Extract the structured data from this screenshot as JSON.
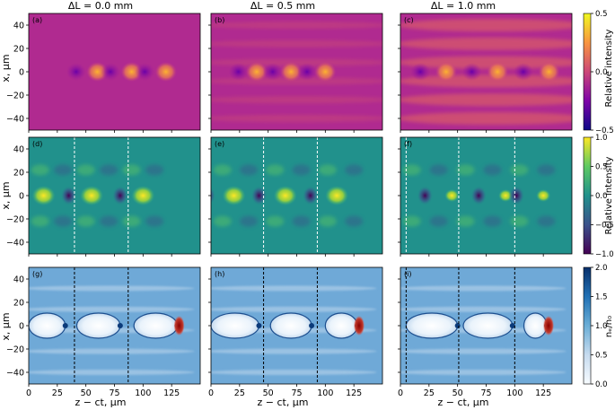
{
  "chart_data": {
    "type": "heatmap",
    "layout": {
      "rows": 3,
      "columns": 3
    },
    "column_titles": [
      "ΔL = 0.0 mm",
      "ΔL = 0.5 mm",
      "ΔL = 1.0 mm"
    ],
    "xlabel": "z − ct, μm",
    "ylabel": "x, μm",
    "xlim": [
      0,
      150
    ],
    "ylim": [
      -50,
      50
    ],
    "x_ticks": [
      "0",
      "25",
      "50",
      "75",
      "100",
      "125"
    ],
    "y_ticks": [
      "40",
      "20",
      "0",
      "−20",
      "−40"
    ],
    "colorbars": [
      {
        "row": 0,
        "label": "Relative intensity",
        "range": [
          -0.5,
          0.5
        ],
        "ticks": [
          "−0.5",
          "0.0",
          "0.5"
        ],
        "colormap": "plasma"
      },
      {
        "row": 1,
        "label": "Relative intensity",
        "range": [
          -1.0,
          1.0
        ],
        "ticks": [
          "−1.0",
          "−0.5",
          "0.0",
          "0.5",
          "1.0"
        ],
        "colormap": "viridis"
      },
      {
        "row": 2,
        "label": "nₑ/n₀",
        "range": [
          0.0,
          2.0
        ],
        "ticks": [
          "0.0",
          "0.5",
          "1.0",
          "1.5",
          "2.0"
        ],
        "colormap": "Blues"
      }
    ],
    "panels": [
      {
        "label": "(a)",
        "row": 0,
        "col": 0,
        "period": 37,
        "bubble_z": [
          60,
          90,
          120
        ],
        "cavity_z": [],
        "dashed_z": []
      },
      {
        "label": "(b)",
        "row": 0,
        "col": 1,
        "period": 32,
        "bubble_z": [
          40,
          70,
          100
        ],
        "cavity_z": [],
        "dashed_z": []
      },
      {
        "label": "(c)",
        "row": 0,
        "col": 2,
        "period": 45,
        "bubble_z": [
          40,
          85,
          130
        ],
        "cavity_z": [],
        "dashed_z": []
      },
      {
        "label": "(d)",
        "row": 1,
        "col": 0,
        "period": 40,
        "bubble_z": [
          13,
          55,
          100
        ],
        "cavity_z": [],
        "dashed_z": [
          40,
          87
        ]
      },
      {
        "label": "(e)",
        "row": 1,
        "col": 1,
        "period": 46,
        "bubble_z": [
          20,
          65,
          110
        ],
        "cavity_z": [],
        "dashed_z": [
          46,
          93
        ]
      },
      {
        "label": "(f)",
        "row": 1,
        "col": 2,
        "period": 47,
        "bubble_z": [
          45,
          92,
          125
        ],
        "cavity_z": [],
        "dashed_z": [
          5,
          51,
          100
        ]
      },
      {
        "label": "(g)",
        "row": 2,
        "col": 0,
        "period": 40,
        "bubble_z": [],
        "cavity_z": [
          [
            0,
            32
          ],
          [
            42,
            80
          ],
          [
            92,
            130
          ]
        ],
        "dashed_z": [
          40,
          87
        ]
      },
      {
        "label": "(h)",
        "row": 2,
        "col": 1,
        "period": 46,
        "bubble_z": [],
        "cavity_z": [
          [
            0,
            42
          ],
          [
            52,
            88
          ],
          [
            100,
            128
          ]
        ],
        "dashed_z": [
          46,
          93
        ]
      },
      {
        "label": "(i)",
        "row": 2,
        "col": 2,
        "period": 47,
        "bubble_z": [],
        "cavity_z": [
          [
            5,
            50
          ],
          [
            55,
            98
          ],
          [
            108,
            128
          ]
        ],
        "dashed_z": [
          5,
          51,
          100
        ]
      }
    ]
  }
}
